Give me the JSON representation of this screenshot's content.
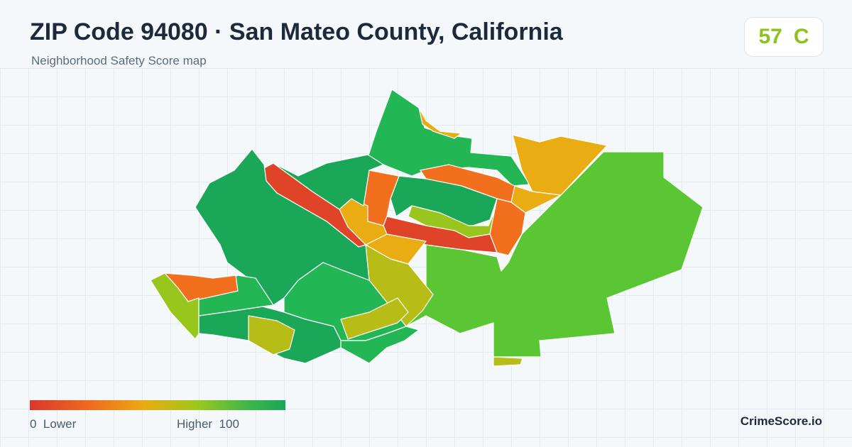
{
  "header": {
    "title": "ZIP Code 94080 · San Mateo County, California",
    "subtitle": "Neighborhood Safety Score map"
  },
  "score": {
    "value": "57",
    "grade": "C",
    "color": "#8cc21e"
  },
  "legend": {
    "low_value": "0",
    "low_label": "Lower",
    "high_label": "Higher",
    "high_value": "100",
    "colors": [
      "#d9382c",
      "#f06f1e",
      "#ebab13",
      "#9ec81c",
      "#41b649",
      "#17a75a"
    ]
  },
  "brand": "CrimeScore.io",
  "map": {
    "fill_colors": {
      "dark_green": "#1aa858",
      "green": "#22b655",
      "light_green": "#5ac634",
      "yellow_green": "#98c61c",
      "olive": "#b7bd16",
      "amber": "#e9ac12",
      "orange": "#f26f1e",
      "red": "#e04428"
    }
  }
}
